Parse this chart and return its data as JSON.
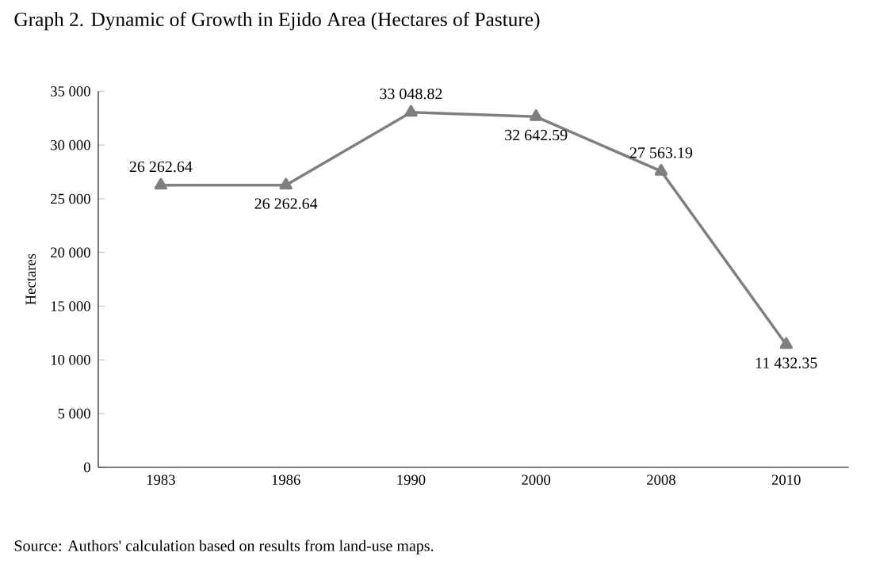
{
  "chart_data": {
    "type": "line",
    "title": "Graph 2. Dynamic of Growth in Ejido Area (Hectares of Pasture)",
    "ylabel": "Hectares",
    "categories": [
      "1983",
      "1986",
      "1990",
      "2000",
      "2008",
      "2010"
    ],
    "values": [
      26262.64,
      26262.64,
      33048.82,
      32642.59,
      27563.19,
      11432.35
    ],
    "value_labels": [
      "26 262.64",
      "26 262.64",
      "33 048.82",
      "32 642.59",
      "27 563.19",
      "11 432.35"
    ],
    "color": "#7f7f7f",
    "marker": "triangle",
    "line_style": "solid",
    "grid": false,
    "legend": false,
    "ylim": [
      0,
      35000
    ],
    "yticks": [
      0,
      {
        "value": 5000,
        "label": "5 000"
      },
      {
        "value": 10000,
        "label": "10 000"
      },
      {
        "value": 15000,
        "label": "15 000"
      },
      {
        "value": 20000,
        "label": "20 000"
      },
      {
        "value": 25000,
        "label": "25 000"
      },
      {
        "value": 30000,
        "label": "30 000"
      },
      {
        "value": 35000,
        "label": "35 000"
      }
    ],
    "annotations": [
      "Source: Authors' calculation based on results from land-use maps."
    ]
  }
}
